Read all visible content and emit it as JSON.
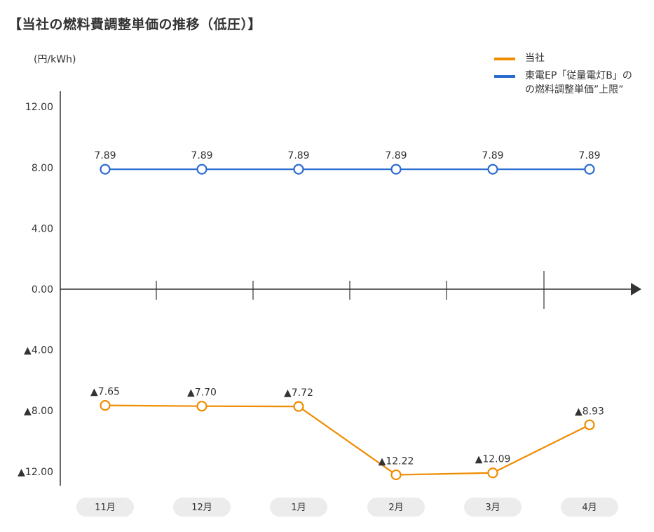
{
  "chart_data": {
    "type": "line",
    "title": "【当社の燃料費調整単価の推移（低圧）】",
    "ylabel": "(円/kWh)",
    "categories": [
      "11月",
      "12月",
      "1月",
      "2月",
      "3月",
      "4月"
    ],
    "yticks": [
      12,
      8,
      4,
      0,
      -4,
      -8,
      -12
    ],
    "ytick_labels": [
      "12.00",
      "8.00",
      "4.00",
      "0.00",
      "▲4.00",
      "▲8.00",
      "▲12.00"
    ],
    "ylim": [
      -13,
      13
    ],
    "legend_position": "top-right",
    "series": [
      {
        "name": "当社",
        "name_lines": [
          "当社"
        ],
        "color": "#f08c00",
        "values": [
          -7.65,
          -7.7,
          -7.72,
          -12.22,
          -12.09,
          -8.93
        ],
        "labels": [
          "▲7.65",
          "▲7.70",
          "▲7.72",
          "▲12.22",
          "▲12.09",
          "▲8.93"
        ]
      },
      {
        "name": "東電EP「従量電灯B」の の燃料調整単価”上限”",
        "name_lines": [
          "東電EP「従量電灯B」の",
          "の燃料調整単価”上限”"
        ],
        "color": "#2a6bd0",
        "values": [
          7.89,
          7.89,
          7.89,
          7.89,
          7.89,
          7.89
        ],
        "labels": [
          "7.89",
          "7.89",
          "7.89",
          "7.89",
          "7.89",
          "7.89"
        ]
      }
    ]
  }
}
